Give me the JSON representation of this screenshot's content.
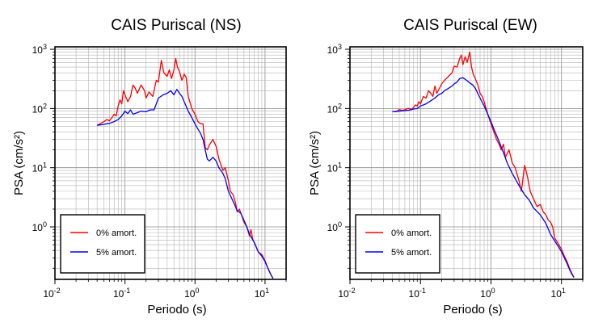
{
  "chart_data": [
    {
      "type": "line",
      "title": "CAIS Puriscal (NS)",
      "xlabel": "Periodo (s)",
      "ylabel": "PSA (cm/s²)",
      "xscale": "log",
      "yscale": "log",
      "xlim": [
        0.01,
        20
      ],
      "ylim": [
        0.13,
        1100
      ],
      "x_ticks": [
        {
          "label": "10",
          "exp": "-2"
        },
        {
          "label": "10",
          "exp": "-1"
        },
        {
          "label": "10",
          "exp": "0"
        },
        {
          "label": "10",
          "exp": "1"
        }
      ],
      "y_ticks": [
        {
          "label": "10",
          "exp": "0"
        },
        {
          "label": "10",
          "exp": "1"
        },
        {
          "label": "10",
          "exp": "2"
        },
        {
          "label": "10",
          "exp": "3"
        }
      ],
      "grid": true,
      "legend_position": "bottom-left",
      "series": [
        {
          "name": "0% amort.",
          "color": "#ff0000",
          "points": [
            [
              0.04,
              52
            ],
            [
              0.045,
              56
            ],
            [
              0.05,
              60
            ],
            [
              0.055,
              65
            ],
            [
              0.06,
              62
            ],
            [
              0.065,
              70
            ],
            [
              0.07,
              80
            ],
            [
              0.075,
              75
            ],
            [
              0.08,
              110
            ],
            [
              0.085,
              140
            ],
            [
              0.09,
              120
            ],
            [
              0.095,
              200
            ],
            [
              0.1,
              170
            ],
            [
              0.11,
              130
            ],
            [
              0.12,
              160
            ],
            [
              0.13,
              250
            ],
            [
              0.14,
              220
            ],
            [
              0.15,
              180
            ],
            [
              0.17,
              250
            ],
            [
              0.19,
              200
            ],
            [
              0.2,
              150
            ],
            [
              0.22,
              190
            ],
            [
              0.25,
              160
            ],
            [
              0.28,
              300
            ],
            [
              0.3,
              280
            ],
            [
              0.33,
              650
            ],
            [
              0.36,
              400
            ],
            [
              0.4,
              350
            ],
            [
              0.43,
              450
            ],
            [
              0.46,
              320
            ],
            [
              0.5,
              450
            ],
            [
              0.53,
              700
            ],
            [
              0.56,
              500
            ],
            [
              0.6,
              420
            ],
            [
              0.65,
              300
            ],
            [
              0.7,
              380
            ],
            [
              0.75,
              330
            ],
            [
              0.8,
              160
            ],
            [
              0.9,
              100
            ],
            [
              1.0,
              80
            ],
            [
              1.1,
              60
            ],
            [
              1.2,
              55
            ],
            [
              1.3,
              55
            ],
            [
              1.4,
              22
            ],
            [
              1.5,
              20
            ],
            [
              1.6,
              24
            ],
            [
              1.8,
              30
            ],
            [
              2.0,
              23
            ],
            [
              2.2,
              14
            ],
            [
              2.5,
              9
            ],
            [
              2.7,
              10
            ],
            [
              3.0,
              6
            ],
            [
              3.2,
              4
            ],
            [
              3.5,
              3.5
            ],
            [
              3.8,
              2.5
            ],
            [
              4.0,
              1.8
            ],
            [
              4.3,
              2.0
            ],
            [
              4.7,
              1.5
            ],
            [
              5.0,
              1.2
            ],
            [
              5.5,
              1.0
            ],
            [
              6.0,
              0.7
            ],
            [
              6.3,
              0.9
            ],
            [
              6.7,
              0.6
            ],
            [
              7.0,
              0.55
            ],
            [
              8.0,
              0.38
            ],
            [
              9.0,
              0.34
            ],
            [
              10.0,
              0.27
            ],
            [
              11.0,
              0.2
            ],
            [
              12.0,
              0.16
            ],
            [
              13.0,
              0.135
            ]
          ]
        },
        {
          "name": "5% amort.",
          "color": "#0000ff",
          "points": [
            [
              0.04,
              52
            ],
            [
              0.05,
              54
            ],
            [
              0.06,
              56
            ],
            [
              0.07,
              60
            ],
            [
              0.08,
              65
            ],
            [
              0.09,
              75
            ],
            [
              0.1,
              90
            ],
            [
              0.11,
              82
            ],
            [
              0.12,
              95
            ],
            [
              0.13,
              80
            ],
            [
              0.15,
              85
            ],
            [
              0.17,
              90
            ],
            [
              0.2,
              88
            ],
            [
              0.23,
              95
            ],
            [
              0.26,
              95
            ],
            [
              0.28,
              120
            ],
            [
              0.3,
              150
            ],
            [
              0.35,
              170
            ],
            [
              0.4,
              180
            ],
            [
              0.45,
              200
            ],
            [
              0.5,
              170
            ],
            [
              0.55,
              210
            ],
            [
              0.6,
              180
            ],
            [
              0.65,
              160
            ],
            [
              0.7,
              130
            ],
            [
              0.8,
              90
            ],
            [
              0.9,
              70
            ],
            [
              1.0,
              55
            ],
            [
              1.1,
              45
            ],
            [
              1.2,
              38
            ],
            [
              1.3,
              30
            ],
            [
              1.4,
              20
            ],
            [
              1.5,
              14
            ],
            [
              1.6,
              13
            ],
            [
              1.8,
              15
            ],
            [
              2.0,
              13
            ],
            [
              2.2,
              10
            ],
            [
              2.5,
              8
            ],
            [
              2.7,
              6.5
            ],
            [
              3.0,
              4
            ],
            [
              3.5,
              2.7
            ],
            [
              4.0,
              1.9
            ],
            [
              4.5,
              1.7
            ],
            [
              5.0,
              1.3
            ],
            [
              5.5,
              1.0
            ],
            [
              6.0,
              0.75
            ],
            [
              7.0,
              0.55
            ],
            [
              8.0,
              0.38
            ],
            [
              9.0,
              0.32
            ],
            [
              10.0,
              0.26
            ],
            [
              11.0,
              0.2
            ],
            [
              12.0,
              0.16
            ],
            [
              13.0,
              0.135
            ]
          ]
        }
      ]
    },
    {
      "type": "line",
      "title": "CAIS Puriscal (EW)",
      "xlabel": "Periodo (s)",
      "ylabel": "PSA (cm/s²)",
      "xscale": "log",
      "yscale": "log",
      "xlim": [
        0.01,
        20
      ],
      "ylim": [
        0.13,
        1100
      ],
      "x_ticks": [
        {
          "label": "10",
          "exp": "-2"
        },
        {
          "label": "10",
          "exp": "-1"
        },
        {
          "label": "10",
          "exp": "0"
        },
        {
          "label": "10",
          "exp": "1"
        }
      ],
      "y_ticks": [
        {
          "label": "10",
          "exp": "0"
        },
        {
          "label": "10",
          "exp": "1"
        },
        {
          "label": "10",
          "exp": "2"
        },
        {
          "label": "10",
          "exp": "3"
        }
      ],
      "grid": true,
      "legend_position": "bottom-left",
      "series": [
        {
          "name": "0% amort.",
          "color": "#ff0000",
          "points": [
            [
              0.04,
              88
            ],
            [
              0.045,
              88
            ],
            [
              0.05,
              96
            ],
            [
              0.055,
              93
            ],
            [
              0.06,
              95
            ],
            [
              0.065,
              100
            ],
            [
              0.07,
              100
            ],
            [
              0.075,
              95
            ],
            [
              0.08,
              105
            ],
            [
              0.085,
              115
            ],
            [
              0.09,
              110
            ],
            [
              0.095,
              130
            ],
            [
              0.1,
              120
            ],
            [
              0.11,
              160
            ],
            [
              0.12,
              150
            ],
            [
              0.13,
              200
            ],
            [
              0.14,
              180
            ],
            [
              0.15,
              160
            ],
            [
              0.16,
              240
            ],
            [
              0.17,
              180
            ],
            [
              0.19,
              230
            ],
            [
              0.2,
              260
            ],
            [
              0.22,
              300
            ],
            [
              0.25,
              350
            ],
            [
              0.28,
              400
            ],
            [
              0.3,
              520
            ],
            [
              0.33,
              500
            ],
            [
              0.36,
              700
            ],
            [
              0.38,
              800
            ],
            [
              0.4,
              550
            ],
            [
              0.43,
              750
            ],
            [
              0.46,
              600
            ],
            [
              0.5,
              900
            ],
            [
              0.53,
              500
            ],
            [
              0.56,
              380
            ],
            [
              0.6,
              320
            ],
            [
              0.65,
              250
            ],
            [
              0.7,
              180
            ],
            [
              0.75,
              160
            ],
            [
              0.8,
              130
            ],
            [
              0.9,
              80
            ],
            [
              1.0,
              55
            ],
            [
              1.1,
              40
            ],
            [
              1.2,
              30
            ],
            [
              1.3,
              25
            ],
            [
              1.4,
              20
            ],
            [
              1.5,
              25
            ],
            [
              1.6,
              15
            ],
            [
              1.8,
              20
            ],
            [
              2.0,
              12
            ],
            [
              2.2,
              10
            ],
            [
              2.5,
              6
            ],
            [
              2.7,
              4
            ],
            [
              3.0,
              11
            ],
            [
              3.3,
              7
            ],
            [
              3.6,
              4
            ],
            [
              4.0,
              3
            ],
            [
              4.5,
              2.2
            ],
            [
              5.0,
              2.4
            ],
            [
              5.5,
              1.8
            ],
            [
              6.0,
              1.6
            ],
            [
              6.5,
              1.3
            ],
            [
              7.0,
              1.2
            ],
            [
              7.5,
              1.0
            ],
            [
              8.0,
              0.65
            ],
            [
              9.0,
              0.52
            ],
            [
              10.0,
              0.42
            ],
            [
              11.0,
              0.32
            ],
            [
              12.0,
              0.26
            ],
            [
              13.0,
              0.2
            ],
            [
              14.0,
              0.165
            ],
            [
              15.0,
              0.14
            ]
          ]
        },
        {
          "name": "5% amort.",
          "color": "#0000ff",
          "points": [
            [
              0.04,
              88
            ],
            [
              0.05,
              90
            ],
            [
              0.06,
              92
            ],
            [
              0.07,
              94
            ],
            [
              0.08,
              98
            ],
            [
              0.09,
              100
            ],
            [
              0.1,
              110
            ],
            [
              0.12,
              120
            ],
            [
              0.14,
              135
            ],
            [
              0.16,
              150
            ],
            [
              0.18,
              170
            ],
            [
              0.2,
              180
            ],
            [
              0.22,
              200
            ],
            [
              0.25,
              220
            ],
            [
              0.28,
              240
            ],
            [
              0.3,
              260
            ],
            [
              0.33,
              280
            ],
            [
              0.36,
              320
            ],
            [
              0.4,
              330
            ],
            [
              0.45,
              300
            ],
            [
              0.5,
              270
            ],
            [
              0.55,
              250
            ],
            [
              0.6,
              220
            ],
            [
              0.7,
              150
            ],
            [
              0.8,
              110
            ],
            [
              0.9,
              80
            ],
            [
              1.0,
              60
            ],
            [
              1.1,
              45
            ],
            [
              1.2,
              35
            ],
            [
              1.3,
              28
            ],
            [
              1.5,
              18
            ],
            [
              1.7,
              12
            ],
            [
              2.0,
              8
            ],
            [
              2.5,
              5
            ],
            [
              3.0,
              3.5
            ],
            [
              3.5,
              2.8
            ],
            [
              4.0,
              2.1
            ],
            [
              5.0,
              1.6
            ],
            [
              6.0,
              1.15
            ],
            [
              7.0,
              0.75
            ],
            [
              8.0,
              0.58
            ],
            [
              9.0,
              0.47
            ],
            [
              10.0,
              0.38
            ],
            [
              11.0,
              0.3
            ],
            [
              12.0,
              0.24
            ],
            [
              13.0,
              0.19
            ],
            [
              14.0,
              0.16
            ],
            [
              15.0,
              0.14
            ]
          ]
        }
      ]
    }
  ]
}
